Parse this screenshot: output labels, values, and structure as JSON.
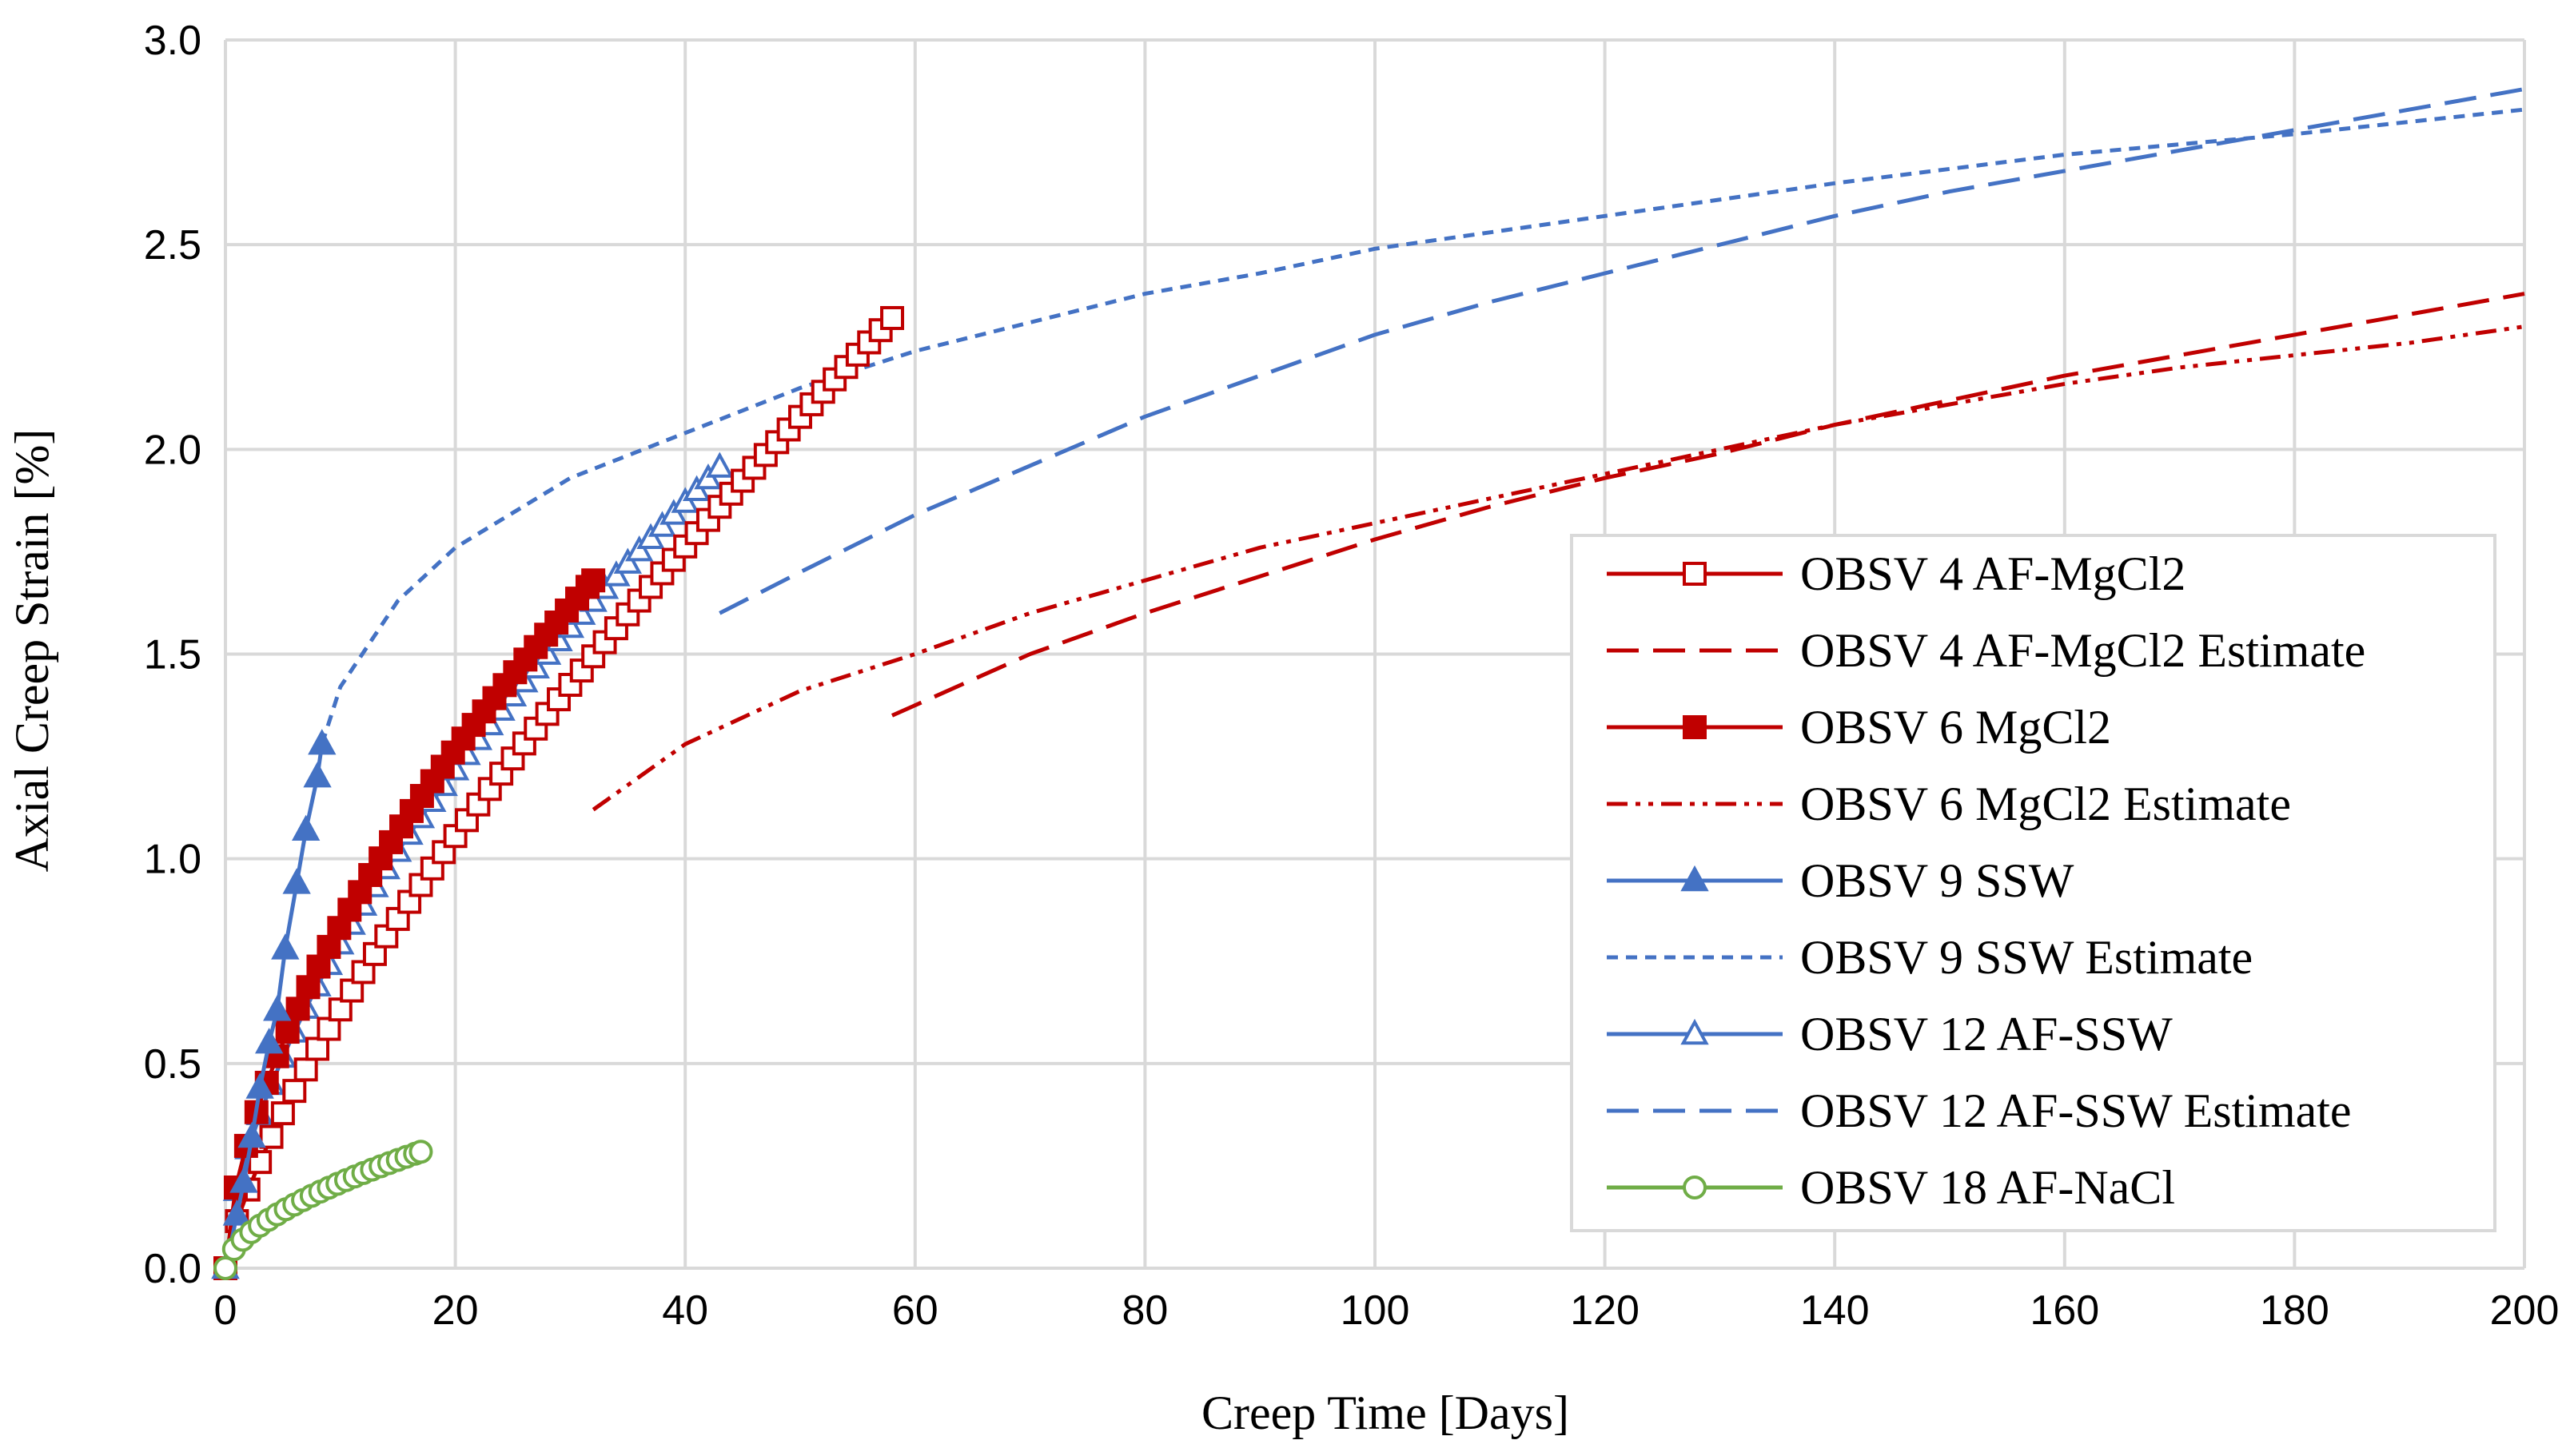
{
  "chart_data": {
    "type": "line",
    "title": "",
    "xlabel": "Creep Time [Days]",
    "ylabel": "Axial Creep Strain [%]",
    "xlim": [
      0,
      200
    ],
    "ylim": [
      0,
      3.0
    ],
    "x_ticks": [
      "0",
      "20",
      "40",
      "60",
      "80",
      "100",
      "120",
      "140",
      "160",
      "180",
      "200"
    ],
    "y_ticks": [
      "0.0",
      "0.5",
      "1.0",
      "1.5",
      "2.0",
      "2.5",
      "3.0"
    ],
    "grid": true,
    "legend_position": "lower-right",
    "colors": {
      "red": "#C00000",
      "blue": "#4472C4",
      "green": "#70AD47",
      "grid": "#D9D9D9"
    },
    "series": [
      {
        "name": "OBSV 4 AF-MgCl2",
        "style": "solid",
        "marker": "square-open",
        "color": "#C00000",
        "model": {
          "a": 0.115,
          "b": 0.74,
          "xmax": 58,
          "step": 1
        }
      },
      {
        "name": "OBSV 4 AF-MgCl2 Estimate",
        "style": "long-dash",
        "marker": "none",
        "color": "#C00000",
        "points": [
          [
            58,
            1.35
          ],
          [
            70,
            1.5
          ],
          [
            80,
            1.6
          ],
          [
            90,
            1.69
          ],
          [
            100,
            1.78
          ],
          [
            110,
            1.86
          ],
          [
            120,
            1.93
          ],
          [
            130,
            1.99
          ],
          [
            140,
            2.06
          ],
          [
            150,
            2.12
          ],
          [
            160,
            2.18
          ],
          [
            170,
            2.23
          ],
          [
            180,
            2.28
          ],
          [
            190,
            2.33
          ],
          [
            200,
            2.38
          ]
        ]
      },
      {
        "name": "OBSV 6 MgCl2",
        "style": "solid",
        "marker": "square-filled",
        "color": "#C00000",
        "model": {
          "a": 0.21,
          "b": 0.6,
          "xmax": 32,
          "step": 0.9
        }
      },
      {
        "name": "OBSV 6 MgCl2 Estimate",
        "style": "dash-dot-dot",
        "marker": "none",
        "color": "#C00000",
        "points": [
          [
            32,
            1.12
          ],
          [
            40,
            1.28
          ],
          [
            50,
            1.41
          ],
          [
            60,
            1.5
          ],
          [
            70,
            1.6
          ],
          [
            80,
            1.68
          ],
          [
            90,
            1.76
          ],
          [
            100,
            1.82
          ],
          [
            110,
            1.88
          ],
          [
            120,
            1.94
          ],
          [
            130,
            2.0
          ],
          [
            140,
            2.06
          ],
          [
            150,
            2.11
          ],
          [
            160,
            2.16
          ],
          [
            170,
            2.2
          ],
          [
            180,
            2.23
          ],
          [
            190,
            2.26
          ],
          [
            200,
            2.3
          ]
        ]
      },
      {
        "name": "OBSV 9 SSW",
        "style": "solid",
        "marker": "triangle-filled",
        "color": "#4472C4",
        "points": [
          [
            0,
            0
          ],
          [
            1,
            0.13
          ],
          [
            1.6,
            0.21
          ],
          [
            2.3,
            0.32
          ],
          [
            3,
            0.44
          ],
          [
            3.8,
            0.55
          ],
          [
            4.5,
            0.63
          ],
          [
            5.2,
            0.78
          ],
          [
            6.2,
            0.94
          ],
          [
            7,
            1.07
          ],
          [
            8,
            1.2
          ],
          [
            8.4,
            1.28
          ]
        ]
      },
      {
        "name": "OBSV 9 SSW Estimate",
        "style": "short-dash",
        "marker": "none",
        "color": "#4472C4",
        "points": [
          [
            8.4,
            1.28
          ],
          [
            10,
            1.42
          ],
          [
            15,
            1.63
          ],
          [
            20,
            1.76
          ],
          [
            30,
            1.93
          ],
          [
            40,
            2.04
          ],
          [
            50,
            2.15
          ],
          [
            60,
            2.24
          ],
          [
            70,
            2.31
          ],
          [
            80,
            2.38
          ],
          [
            90,
            2.43
          ],
          [
            100,
            2.49
          ],
          [
            120,
            2.57
          ],
          [
            140,
            2.65
          ],
          [
            160,
            2.72
          ],
          [
            180,
            2.77
          ],
          [
            200,
            2.83
          ]
        ]
      },
      {
        "name": "OBSV 12 AF-SSW",
        "style": "solid",
        "marker": "triangle-open",
        "color": "#4472C4",
        "model": {
          "a": 0.19,
          "b": 0.62,
          "xmax": 43,
          "step": 1
        }
      },
      {
        "name": "OBSV 12 AF-SSW Estimate",
        "style": "long-dash",
        "marker": "none",
        "color": "#4472C4",
        "points": [
          [
            43,
            1.6
          ],
          [
            50,
            1.7
          ],
          [
            60,
            1.84
          ],
          [
            70,
            1.96
          ],
          [
            80,
            2.08
          ],
          [
            90,
            2.18
          ],
          [
            100,
            2.28
          ],
          [
            110,
            2.36
          ],
          [
            120,
            2.43
          ],
          [
            130,
            2.5
          ],
          [
            140,
            2.57
          ],
          [
            150,
            2.63
          ],
          [
            160,
            2.68
          ],
          [
            170,
            2.73
          ],
          [
            180,
            2.78
          ],
          [
            190,
            2.83
          ],
          [
            200,
            2.88
          ]
        ]
      },
      {
        "name": "OBSV 18 AF-NaCl",
        "style": "solid",
        "marker": "circle-open",
        "color": "#70AD47",
        "model": {
          "a": 0.055,
          "b": 0.58,
          "xmax": 17,
          "step": 0.75
        }
      }
    ]
  }
}
